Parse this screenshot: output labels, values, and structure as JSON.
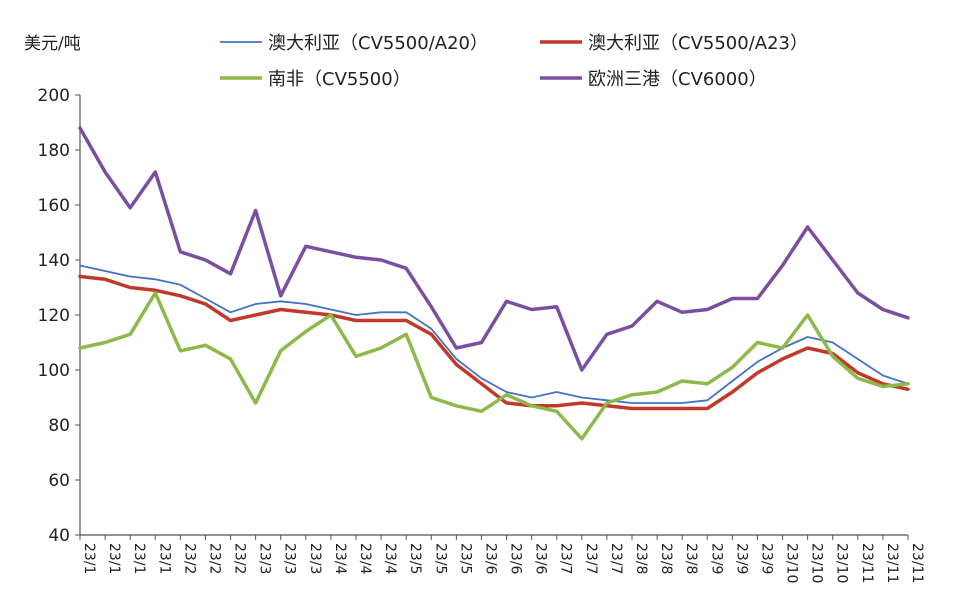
{
  "chart_data": {
    "type": "line",
    "ylabel": "美元/吨",
    "ylim": [
      40,
      200
    ],
    "yticks": [
      40,
      60,
      80,
      100,
      120,
      140,
      160,
      180,
      200
    ],
    "grid": false,
    "legend_position": "top",
    "x": [
      "23/1",
      "23/1",
      "23/1",
      "23/1",
      "23/2",
      "23/2",
      "23/2",
      "23/3",
      "23/3",
      "23/3",
      "23/4",
      "23/4",
      "23/4",
      "23/5",
      "23/5",
      "23/5",
      "23/6",
      "23/6",
      "23/6",
      "23/7",
      "23/7",
      "23/7",
      "23/8",
      "23/8",
      "23/8",
      "23/9",
      "23/9",
      "23/9",
      "23/10",
      "23/10",
      "23/10",
      "23/11",
      "23/11",
      "23/11"
    ],
    "series": [
      {
        "name": "澳大利亚（CV5500/A20）",
        "color": "#4472C4",
        "width": 1.8,
        "points": [
          [
            0,
            138
          ],
          [
            1,
            136
          ],
          [
            2,
            134
          ],
          [
            3,
            133
          ],
          [
            4,
            131
          ],
          [
            5,
            126
          ],
          [
            6,
            121
          ],
          [
            7,
            124
          ],
          [
            8,
            125
          ],
          [
            9,
            124
          ],
          [
            10,
            122
          ],
          [
            11,
            120
          ],
          [
            12,
            121
          ],
          [
            13,
            121
          ],
          [
            14,
            115
          ],
          [
            15,
            104
          ],
          [
            16,
            97
          ],
          [
            17,
            92
          ],
          [
            18,
            90
          ],
          [
            19,
            92
          ],
          [
            20,
            90
          ],
          [
            21,
            89
          ],
          [
            22,
            88
          ],
          [
            23,
            88
          ],
          [
            24,
            88
          ],
          [
            25,
            89
          ],
          [
            26,
            96
          ],
          [
            27,
            103
          ],
          [
            28,
            108
          ],
          [
            29,
            112
          ],
          [
            30,
            110
          ],
          [
            31,
            104
          ],
          [
            32,
            98
          ],
          [
            33,
            95
          ]
        ]
      },
      {
        "name": "澳大利亚（CV5500/A23）",
        "color": "#C0392B",
        "width": 3.5,
        "points": [
          [
            0,
            134
          ],
          [
            1,
            133
          ],
          [
            2,
            130
          ],
          [
            3,
            129
          ],
          [
            4,
            127
          ],
          [
            5,
            124
          ],
          [
            6,
            118
          ],
          [
            7,
            120
          ],
          [
            8,
            122
          ],
          [
            9,
            121
          ],
          [
            10,
            120
          ],
          [
            11,
            118
          ],
          [
            12,
            118
          ],
          [
            13,
            118
          ],
          [
            14,
            113
          ],
          [
            15,
            102
          ],
          [
            16,
            95
          ],
          [
            17,
            88
          ],
          [
            18,
            87
          ],
          [
            19,
            87
          ],
          [
            20,
            88
          ],
          [
            21,
            87
          ],
          [
            22,
            86
          ],
          [
            23,
            86
          ],
          [
            24,
            86
          ],
          [
            25,
            86
          ],
          [
            26,
            92
          ],
          [
            27,
            99
          ],
          [
            28,
            104
          ],
          [
            29,
            108
          ],
          [
            30,
            106
          ],
          [
            31,
            99
          ],
          [
            32,
            95
          ],
          [
            33,
            93
          ]
        ]
      },
      {
        "name": "南非（CV5500）",
        "color": "#8DB84A",
        "width": 3.5,
        "points": [
          [
            0,
            108
          ],
          [
            1,
            110
          ],
          [
            2,
            113
          ],
          [
            3,
            128
          ],
          [
            4,
            107
          ],
          [
            5,
            109
          ],
          [
            6,
            104
          ],
          [
            7,
            88
          ],
          [
            8,
            107
          ],
          [
            9,
            114
          ],
          [
            10,
            120
          ],
          [
            11,
            105
          ],
          [
            12,
            108
          ],
          [
            13,
            113
          ],
          [
            14,
            90
          ],
          [
            15,
            87
          ],
          [
            16,
            85
          ],
          [
            17,
            91
          ],
          [
            18,
            87
          ],
          [
            19,
            85
          ],
          [
            20,
            75
          ],
          [
            21,
            88
          ],
          [
            22,
            91
          ],
          [
            23,
            92
          ],
          [
            24,
            96
          ],
          [
            25,
            95
          ],
          [
            26,
            101
          ],
          [
            27,
            110
          ],
          [
            28,
            108
          ],
          [
            29,
            120
          ],
          [
            30,
            105
          ],
          [
            31,
            97
          ],
          [
            32,
            94
          ],
          [
            33,
            95
          ]
        ]
      },
      {
        "name": "欧洲三港（CV6000）",
        "color": "#7B4FA0",
        "width": 3.5,
        "points": [
          [
            0,
            188
          ],
          [
            1,
            172
          ],
          [
            2,
            159
          ],
          [
            3,
            172
          ],
          [
            4,
            143
          ],
          [
            5,
            140
          ],
          [
            6,
            135
          ],
          [
            7,
            158
          ],
          [
            8,
            127
          ],
          [
            9,
            145
          ],
          [
            10,
            143
          ],
          [
            11,
            141
          ],
          [
            12,
            140
          ],
          [
            13,
            137
          ],
          [
            14,
            123
          ],
          [
            15,
            108
          ],
          [
            16,
            110
          ],
          [
            17,
            125
          ],
          [
            18,
            122
          ],
          [
            19,
            123
          ],
          [
            20,
            100
          ],
          [
            21,
            113
          ],
          [
            22,
            116
          ],
          [
            23,
            125
          ],
          [
            24,
            121
          ],
          [
            25,
            122
          ],
          [
            26,
            126
          ],
          [
            27,
            126
          ],
          [
            28,
            138
          ],
          [
            29,
            152
          ],
          [
            30,
            140
          ],
          [
            31,
            128
          ],
          [
            32,
            122
          ],
          [
            33,
            119
          ]
        ]
      }
    ]
  }
}
